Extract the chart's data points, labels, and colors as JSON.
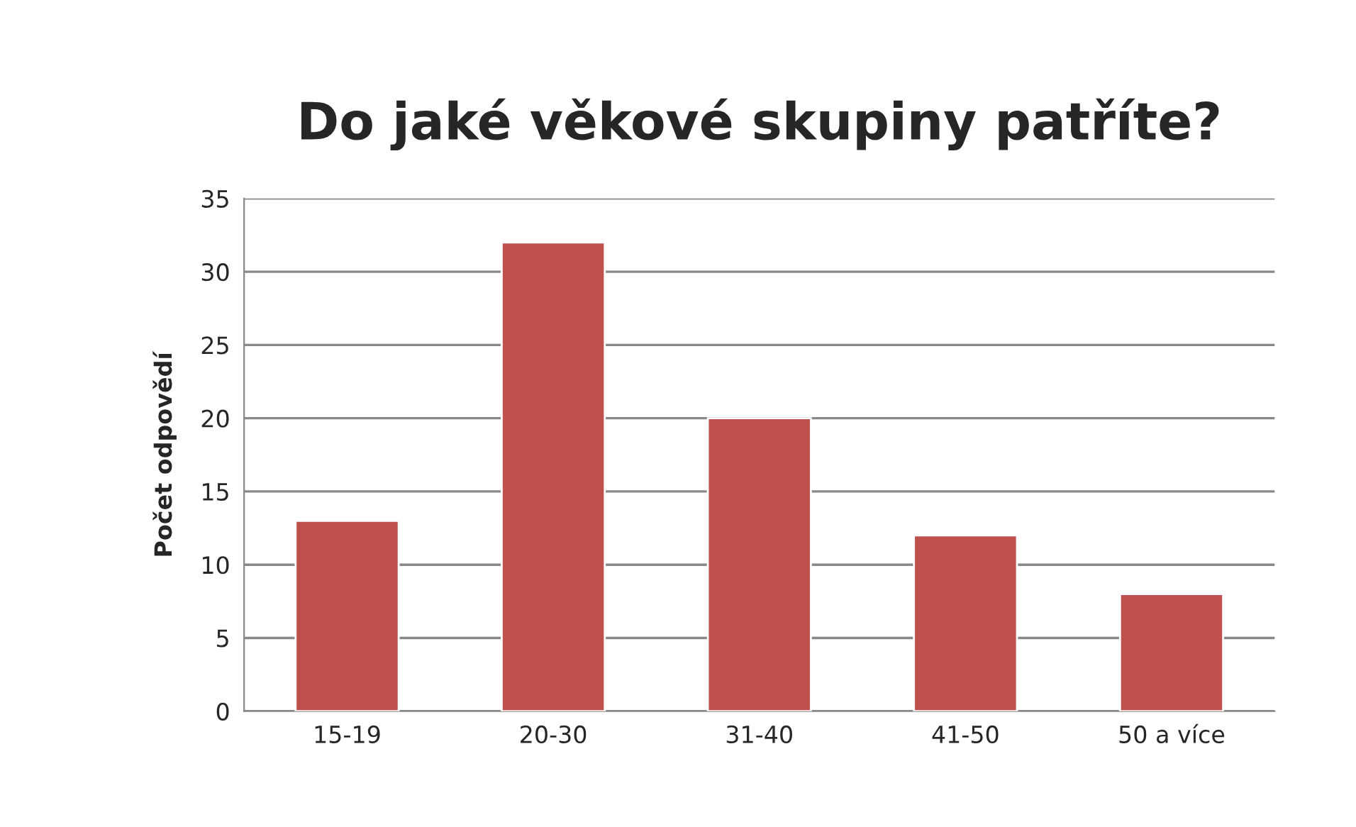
{
  "chart_data": {
    "type": "bar",
    "title": "Do jaké věkové skupiny patříte?",
    "ylabel": "Počet odpovědí",
    "categories": [
      "15-19",
      "20-30",
      "31-40",
      "41-50",
      "50 a více"
    ],
    "values": [
      13,
      32,
      20,
      12,
      8
    ],
    "color": "#c0504d",
    "ylim": [
      0,
      35
    ],
    "yticks": [
      0,
      5,
      10,
      15,
      20,
      25,
      30,
      35
    ],
    "grid": "y",
    "legend": false
  }
}
